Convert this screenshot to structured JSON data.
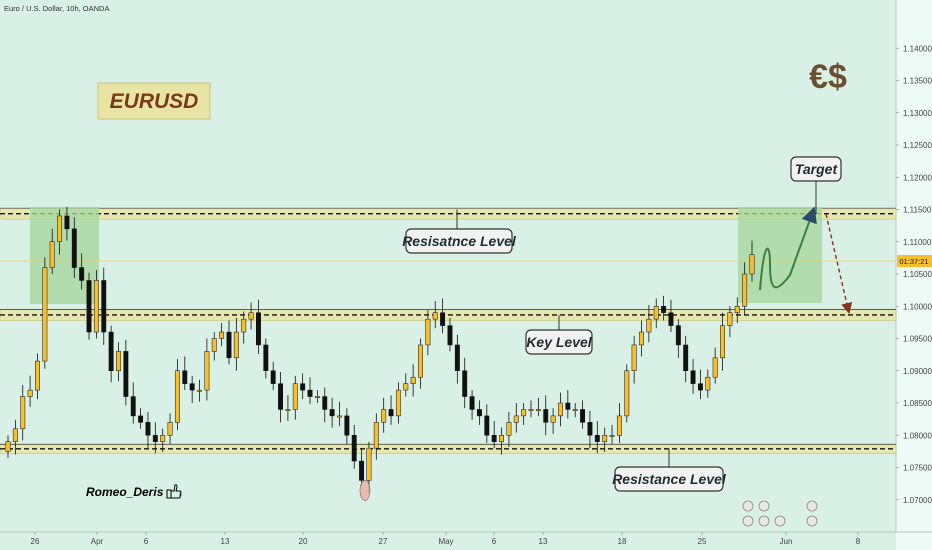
{
  "header": {
    "title": "Euro / U.S. Dollar, 10h, OANDA"
  },
  "badge": {
    "text": "EURUSD"
  },
  "logo": {
    "text": "€$"
  },
  "author": {
    "name": "Romeo_Deris",
    "icon": "thumbs-up-icon"
  },
  "price_label": {
    "text": "01:37:21"
  },
  "colors": {
    "background": "#d8f0e6",
    "bull": "#f5c030",
    "bear": "#111111",
    "zone": "#e8e6a8",
    "box": "#a8d8a0"
  },
  "chart_data": {
    "type": "candlestick",
    "title": "Euro / U.S. Dollar, 10h, OANDA",
    "ylim": [
      1.065,
      1.145
    ],
    "yticks": [
      "1.14000",
      "1.13500",
      "1.13000",
      "1.12500",
      "1.12000",
      "1.11500",
      "1.11000",
      "1.10500",
      "1.10000",
      "1.09500",
      "1.09000",
      "1.08500",
      "1.08000",
      "1.07500",
      "1.07000"
    ],
    "xticks": [
      "26",
      "Apr",
      "6",
      "13",
      "20",
      "27",
      "May",
      "6",
      "13",
      "18",
      "25",
      "Jun",
      "8"
    ],
    "current_price": 1.106,
    "levels": [
      {
        "name": "Resisatnce Level",
        "low": 1.1135,
        "high": 1.1152
      },
      {
        "name": "Key Level",
        "low": 1.0978,
        "high": 1.0995
      },
      {
        "name": "Resistance Level",
        "low": 1.0772,
        "high": 1.0786
      }
    ],
    "annotations": [
      "Resisatnce Level",
      "Key Level",
      "Resistance Level",
      "Target"
    ],
    "close_path": [
      1.079,
      1.081,
      1.086,
      1.087,
      1.0915,
      1.106,
      1.11,
      1.114,
      1.112,
      1.106,
      1.104,
      1.096,
      1.104,
      1.096,
      1.09,
      1.093,
      1.086,
      1.083,
      1.082,
      1.08,
      1.079,
      1.08,
      1.082,
      1.09,
      1.088,
      1.087,
      1.087,
      1.093,
      1.095,
      1.096,
      1.092,
      1.096,
      1.098,
      1.099,
      1.094,
      1.09,
      1.088,
      1.084,
      1.084,
      1.088,
      1.087,
      1.086,
      1.086,
      1.084,
      1.083,
      1.083,
      1.08,
      1.076,
      1.073,
      1.078,
      1.082,
      1.084,
      1.083,
      1.087,
      1.088,
      1.089,
      1.094,
      1.098,
      1.099,
      1.097,
      1.094,
      1.09,
      1.086,
      1.084,
      1.083,
      1.08,
      1.079,
      1.08,
      1.082,
      1.083,
      1.084,
      1.084,
      1.084,
      1.082,
      1.083,
      1.085,
      1.084,
      1.084,
      1.082,
      1.08,
      1.079,
      1.08,
      1.08,
      1.083,
      1.09,
      1.094,
      1.096,
      1.098,
      1.1,
      1.099,
      1.097,
      1.094,
      1.09,
      1.088,
      1.087,
      1.089,
      1.092,
      1.097,
      1.099,
      1.1,
      1.105,
      1.108
    ],
    "projection": [
      [
        760,
        290
      ],
      [
        770,
        250
      ],
      [
        780,
        280
      ],
      [
        800,
        260
      ],
      [
        812,
        205
      ]
    ],
    "target": 1.1143,
    "after_target": 1.099
  }
}
